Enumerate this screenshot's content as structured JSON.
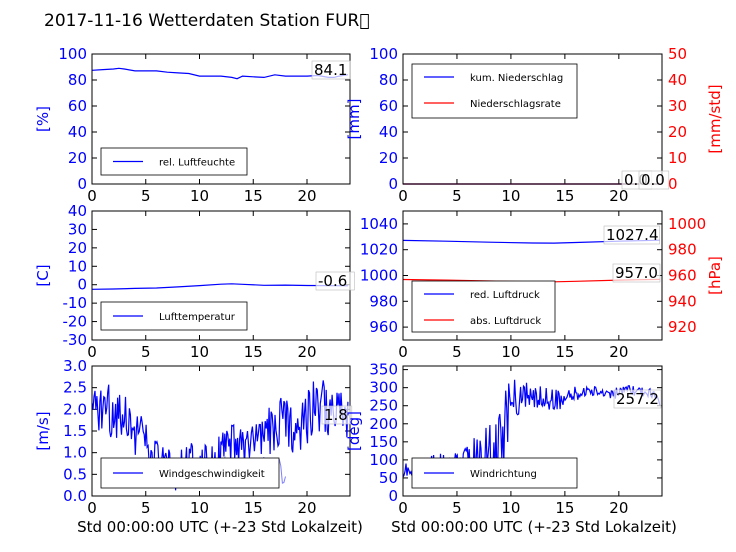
{
  "title": "2017-11-16 Wetterdaten Station FUR\u0000",
  "xlabel": "Std 00:00:00 UTC (+-23 Std Lokalzeit)",
  "colors": {
    "left_axis": "#0000ff",
    "right_axis": "#ff0000",
    "wind_light": "#8080ff"
  },
  "chart_data": [
    {
      "type": "line",
      "ylabel": "[%]",
      "xlim": [
        0,
        24
      ],
      "ylim": [
        0,
        100
      ],
      "xticks": [
        0,
        5,
        10,
        15,
        20
      ],
      "yticks": [
        0,
        20,
        40,
        60,
        80,
        100
      ],
      "legend": "bottom-left",
      "annotation": "84.1",
      "series": [
        {
          "name": "rel. Luftfeuchte",
          "color": "#0000ff",
          "x": [
            0,
            1,
            2,
            2.5,
            3,
            4,
            5,
            6,
            7,
            8,
            9,
            10,
            11,
            12,
            13,
            13.5,
            14,
            15,
            16,
            17,
            18,
            19,
            20,
            21,
            22,
            22.5,
            23,
            23.8
          ],
          "y": [
            87.5,
            88,
            88.5,
            89,
            88.5,
            87,
            87,
            87,
            86,
            85.5,
            85,
            83,
            83,
            83,
            82,
            81,
            83,
            82.5,
            82,
            84,
            83,
            83,
            83,
            83.5,
            82,
            82,
            83,
            84.1
          ]
        }
      ]
    },
    {
      "type": "line",
      "ylabel": "[mm]",
      "ylabel_right": "[mm/std]",
      "xlim": [
        0,
        24
      ],
      "ylim": [
        0,
        100
      ],
      "ylim_right": [
        0,
        50
      ],
      "xticks": [
        0,
        5,
        10,
        15,
        20
      ],
      "yticks": [
        0,
        20,
        40,
        60,
        80,
        100
      ],
      "yticks_right": [
        0,
        10,
        20,
        30,
        40,
        50
      ],
      "legend": "top-left",
      "annotations": [
        "0.0",
        "0.0"
      ],
      "series": [
        {
          "name": "kum. Niederschlag",
          "color": "#0000ff",
          "x": [
            0,
            24
          ],
          "y": [
            0,
            0
          ]
        },
        {
          "name": "Niederschlagsrate",
          "color": "#ff0000",
          "axis": "right",
          "x": [
            0,
            24
          ],
          "y": [
            0,
            0
          ]
        }
      ]
    },
    {
      "type": "line",
      "ylabel": "[C]",
      "xlim": [
        0,
        24
      ],
      "ylim": [
        -30,
        40
      ],
      "xticks": [
        0,
        5,
        10,
        15,
        20
      ],
      "yticks": [
        -30,
        -20,
        -10,
        0,
        10,
        20,
        30,
        40
      ],
      "legend": "bottom-left",
      "annotation": "-0.6",
      "series": [
        {
          "name": "Lufttemperatur",
          "color": "#0000ff",
          "x": [
            0,
            2,
            4,
            6,
            8,
            10,
            12,
            13,
            14,
            16,
            18,
            20,
            22,
            23.8
          ],
          "y": [
            -2.5,
            -2.3,
            -2,
            -1.8,
            -1.2,
            -0.5,
            0.3,
            0.5,
            0.2,
            -0.3,
            -0.2,
            -0.4,
            -0.5,
            -0.6
          ]
        }
      ]
    },
    {
      "type": "line",
      "ylabel_right": "[hPa]",
      "xlim": [
        0,
        24
      ],
      "ylim": [
        950,
        1050
      ],
      "ylim_right": [
        910,
        1010
      ],
      "xticks": [
        0,
        5,
        10,
        15,
        20
      ],
      "yticks": [
        960,
        980,
        1000,
        1020,
        1040
      ],
      "yticks_right": [
        920,
        940,
        960,
        980,
        1000
      ],
      "legend": "bottom-left",
      "annotations": [
        "1027.4",
        "957.0"
      ],
      "series": [
        {
          "name": "red. Luftdruck",
          "color": "#0000ff",
          "x": [
            0,
            4,
            8,
            12,
            14,
            16,
            20,
            23.8
          ],
          "y": [
            1027.2,
            1026.6,
            1025.8,
            1025.2,
            1025.1,
            1025.6,
            1026.6,
            1027.4
          ]
        },
        {
          "name": "abs. Luftdruck",
          "color": "#ff0000",
          "axis": "right",
          "x": [
            0,
            4,
            8,
            12,
            14,
            16,
            20,
            23.8
          ],
          "y": [
            956.9,
            956.4,
            955.7,
            955.2,
            955.1,
            955.5,
            956.4,
            957.0
          ]
        }
      ]
    },
    {
      "type": "line",
      "ylabel": "[m/s]",
      "xlim": [
        0,
        24
      ],
      "ylim": [
        0,
        3
      ],
      "xticks": [
        0,
        5,
        10,
        15,
        20
      ],
      "yticks": [
        0.0,
        0.5,
        1.0,
        1.5,
        2.0,
        2.5,
        3.0
      ],
      "legend": "bottom-left",
      "annotation": "1.8",
      "series": [
        {
          "name": "Windgeschwindigkeit",
          "color": "#0000ff",
          "x": [
            0,
            1,
            2,
            3,
            4,
            5,
            5.5,
            6,
            7,
            8,
            9,
            10,
            11,
            12,
            13,
            14,
            15,
            16,
            17,
            18,
            19,
            20,
            21,
            22,
            23,
            23.8
          ],
          "y": [
            1.8,
            2.1,
            1.9,
            2.0,
            1.5,
            1.3,
            0.8,
            0.9,
            0.6,
            0.6,
            0.7,
            0.8,
            0.9,
            0.9,
            1.1,
            1.1,
            1.2,
            1.3,
            1.6,
            1.7,
            1.6,
            1.9,
            2.1,
            2.0,
            1.9,
            1.8
          ],
          "amplitude": [
            0.35,
            0.4,
            0.4,
            0.35,
            0.35,
            0.3,
            0.3,
            0.25,
            0.3,
            0.3,
            0.3,
            0.35,
            0.35,
            0.35,
            0.35,
            0.35,
            0.35,
            0.35,
            0.4,
            0.4,
            0.4,
            0.45,
            0.45,
            0.4,
            0.35,
            0.3
          ]
        }
      ]
    },
    {
      "type": "line",
      "ylabel": "[deg]",
      "xlim": [
        0,
        24
      ],
      "ylim": [
        0,
        360
      ],
      "xticks": [
        0,
        5,
        10,
        15,
        20
      ],
      "yticks": [
        0,
        50,
        100,
        150,
        200,
        250,
        300,
        350
      ],
      "legend": "bottom-left",
      "annotation": "257.2",
      "series": [
        {
          "name": "Windrichtung",
          "color": "#0000ff",
          "x": [
            0,
            1,
            2,
            3,
            4,
            5,
            6,
            7,
            8,
            9,
            9.5,
            10,
            11,
            12,
            13,
            14,
            15,
            16,
            17,
            18,
            19,
            20,
            21,
            22,
            23,
            23.8
          ],
          "y": [
            70,
            65,
            75,
            80,
            90,
            85,
            95,
            110,
            120,
            140,
            200,
            260,
            275,
            270,
            270,
            270,
            265,
            280,
            290,
            290,
            285,
            285,
            290,
            290,
            285,
            257.2
          ],
          "amplitude": [
            15,
            15,
            20,
            25,
            25,
            25,
            30,
            40,
            50,
            60,
            60,
            40,
            30,
            25,
            25,
            20,
            15,
            15,
            10,
            10,
            10,
            10,
            10,
            10,
            10,
            5
          ]
        }
      ]
    }
  ]
}
